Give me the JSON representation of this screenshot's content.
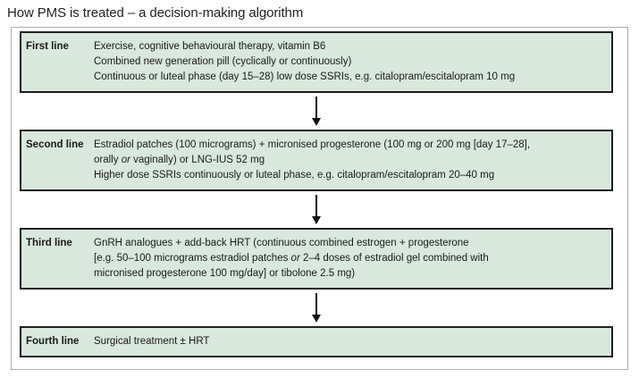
{
  "title": "How PMS is treated – a decision-making algorithm",
  "colors": {
    "box_fill": "#d8e8dd",
    "box_border": "#1f1f1f",
    "outer_border": "#adadad",
    "arrow": "#111111",
    "text": "#1a1a1a"
  },
  "steps": [
    {
      "label": "First line",
      "lines": [
        [
          {
            "text": "Exercise, cognitive behavioural therapy, vitamin B6"
          }
        ],
        [
          {
            "text": "Combined new generation pill (cyclically or continuously)"
          }
        ],
        [
          {
            "text": "Continuous or luteal phase (day 15–28) low dose SSRIs, e.g. citalopram/escitalopram 10 mg"
          }
        ]
      ]
    },
    {
      "label": "Second line",
      "lines": [
        [
          {
            "text": "Estradiol patches (100 micrograms) + micronised progesterone (100 mg or 200 mg [day 17–28],"
          }
        ],
        [
          {
            "text": "orally "
          },
          {
            "text": "or",
            "italic": true
          },
          {
            "text": " vaginally) or LNG-IUS 52 mg"
          }
        ],
        [
          {
            "text": "Higher dose SSRIs continuously or luteal phase, e.g. citalopram/escitalopram 20–40 mg"
          }
        ]
      ]
    },
    {
      "label": "Third line",
      "lines": [
        [
          {
            "text": "GnRH analogues + add-back HRT (continuous combined estrogen + progesterone"
          }
        ],
        [
          {
            "text": "[e.g. 50–100 micrograms estradiol patches "
          },
          {
            "text": "or",
            "italic": true
          },
          {
            "text": " 2–4 doses of estradiol gel combined with"
          }
        ],
        [
          {
            "text": "micronised progesterone 100 mg/day] or tibolone 2.5 mg)"
          }
        ]
      ]
    },
    {
      "label": "Fourth line",
      "lines": [
        [
          {
            "text": "Surgical treatment ± HRT"
          }
        ]
      ]
    }
  ]
}
